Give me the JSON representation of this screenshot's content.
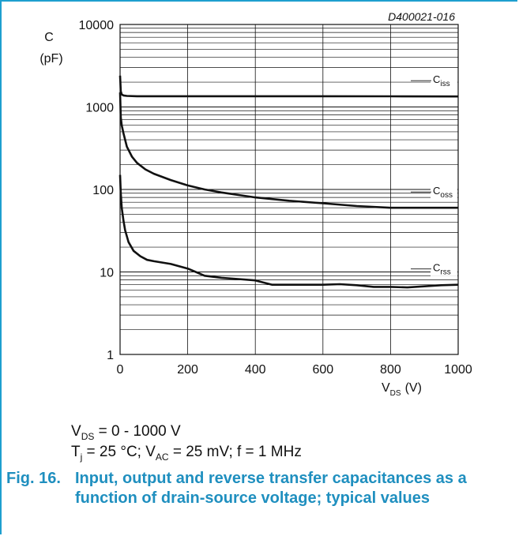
{
  "doc_id": "D400021-016",
  "chart_data": {
    "type": "line",
    "x_axis": {
      "label": "V",
      "label_sub": "DS",
      "unit": "(V)",
      "range": [
        0,
        1000
      ],
      "ticks": [
        "0",
        "200",
        "400",
        "600",
        "800",
        "1000"
      ]
    },
    "y_axis": {
      "label": "C",
      "unit": "(pF)",
      "scale": "log",
      "range": [
        1,
        10000
      ],
      "ticks": [
        "1",
        "10",
        "100",
        "1000",
        "10000"
      ]
    },
    "grid": true,
    "series": [
      {
        "name": "C",
        "name_sub": "iss",
        "x": [
          0,
          2,
          5,
          10,
          20,
          50,
          100,
          200,
          400,
          600,
          800,
          1000
        ],
        "y": [
          2400,
          1550,
          1420,
          1380,
          1360,
          1350,
          1350,
          1350,
          1350,
          1350,
          1345,
          1340
        ]
      },
      {
        "name": "C",
        "name_sub": "oss",
        "x": [
          0,
          2,
          5,
          10,
          20,
          35,
          50,
          75,
          100,
          150,
          200,
          250,
          300,
          400,
          500,
          600,
          700,
          800,
          900,
          1000
        ],
        "y": [
          1500,
          750,
          600,
          480,
          330,
          250,
          210,
          175,
          155,
          130,
          112,
          100,
          92,
          80,
          73,
          68,
          63,
          60,
          60,
          60
        ]
      },
      {
        "name": "C",
        "name_sub": "rss",
        "x": [
          0,
          2,
          5,
          10,
          15,
          25,
          40,
          60,
          80,
          100,
          150,
          200,
          250,
          300,
          350,
          400,
          450,
          500,
          550,
          600,
          650,
          700,
          750,
          800,
          850,
          900,
          950,
          1000
        ],
        "y": [
          150,
          90,
          60,
          42,
          32,
          23,
          18,
          15.5,
          14,
          13.5,
          12.5,
          11,
          9,
          8.5,
          8.2,
          7.9,
          7,
          7,
          7,
          7,
          7.1,
          6.9,
          6.6,
          6.6,
          6.5,
          6.7,
          6.9,
          7
        ]
      }
    ]
  },
  "conditions": {
    "line1": {
      "v": "V",
      "v_sub": "DS",
      "rest": " = 0 - 1000 V"
    },
    "line2": {
      "t": "T",
      "t_sub": "j",
      "mid": " = 25 °C; V",
      "vac_sub": "AC",
      "rest": " = 25 mV; f = 1 MHz"
    }
  },
  "caption": {
    "number": "Fig. 16.",
    "text": "Input, output and reverse transfer capacitances as a function of drain-source voltage; typical values"
  }
}
